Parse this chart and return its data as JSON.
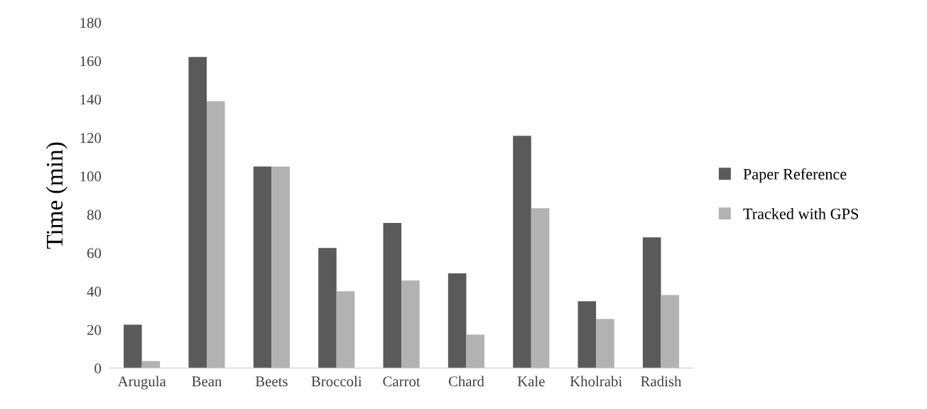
{
  "chart_data": {
    "type": "bar",
    "ylabel": "Time (min)",
    "categories": [
      "Arugula",
      "Bean",
      "Beets",
      "Broccoli",
      "Carrot",
      "Chard",
      "Kale",
      "Kholrabi",
      "Radish"
    ],
    "series": [
      {
        "name": "Paper Reference",
        "color": "#5a5a5a",
        "values": [
          22.6,
          162,
          105,
          62.6,
          75.6,
          49.3,
          121,
          34.8,
          68.1
        ]
      },
      {
        "name": "Tracked with GPS",
        "color": "#b2b2b2",
        "values": [
          3.7,
          139,
          105,
          40,
          45.6,
          17.4,
          83.3,
          25.6,
          38.1
        ]
      }
    ],
    "ylim": [
      0,
      180
    ],
    "yticks": [
      0,
      20,
      40,
      60,
      80,
      100,
      120,
      140,
      160,
      180
    ],
    "grid": false,
    "legend": "right"
  }
}
